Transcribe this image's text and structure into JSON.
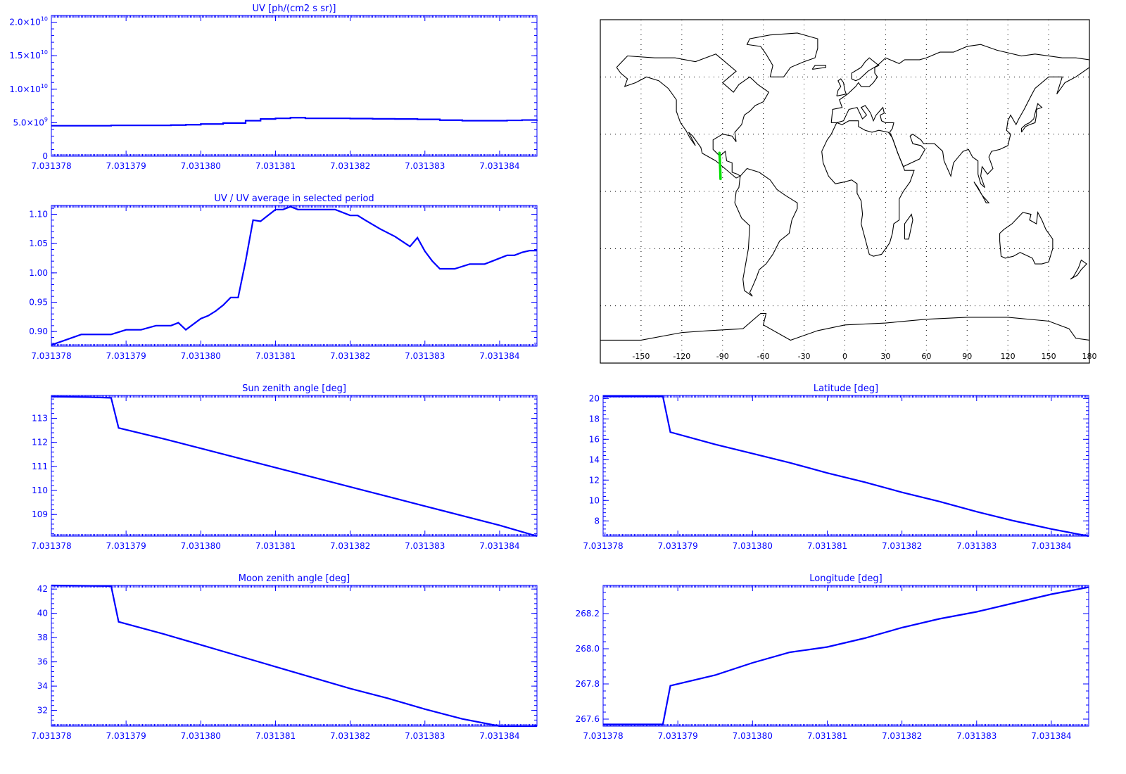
{
  "colors": {
    "axis": "#0000ff",
    "series": "#0000ff",
    "map_line": "#000000",
    "track": "#00e000",
    "grid": "#000000",
    "background": "#ffffff"
  },
  "x_tick_labels": [
    "7.031378",
    "7.031379",
    "7.031380",
    "7.031381",
    "7.031382",
    "7.031383",
    "7.031384"
  ],
  "chart_data": [
    {
      "type": "line",
      "title": "UV [ph/(cm2 s sr)]",
      "xlim": [
        7.031378,
        7.0313845
      ],
      "ylim": [
        0,
        21000000000.0
      ],
      "yticks": [
        {
          "v": 0,
          "mantissa": "0",
          "exp": ""
        },
        {
          "v": 5000000000.0,
          "mantissa": "5.0×10",
          "exp": "9"
        },
        {
          "v": 10000000000.0,
          "mantissa": "1.0×10",
          "exp": "10"
        },
        {
          "v": 15000000000.0,
          "mantissa": "1.5×10",
          "exp": "10"
        },
        {
          "v": 20000000000.0,
          "mantissa": "2.0×10",
          "exp": "10"
        }
      ],
      "step": true,
      "series": [
        {
          "x": [
            7.031378,
            7.0313788,
            7.0313791,
            7.0313796,
            7.0313798,
            7.03138,
            7.0313803,
            7.0313806,
            7.0313808,
            7.031381,
            7.0313812,
            7.0313814,
            7.0313817,
            7.031382,
            7.0313823,
            7.0313826,
            7.0313829,
            7.0313832,
            7.0313835,
            7.0313838,
            7.0313841,
            7.0313843,
            7.0313845
          ],
          "y": [
            4550000000.0,
            4600000000.0,
            4600000000.0,
            4650000000.0,
            4700000000.0,
            4800000000.0,
            4950000000.0,
            5300000000.0,
            5550000000.0,
            5650000000.0,
            5750000000.0,
            5650000000.0,
            5650000000.0,
            5620000000.0,
            5580000000.0,
            5550000000.0,
            5500000000.0,
            5380000000.0,
            5300000000.0,
            5300000000.0,
            5350000000.0,
            5400000000.0,
            5450000000.0
          ]
        }
      ]
    },
    {
      "type": "line",
      "title": "UV / UV average in selected period",
      "xlim": [
        7.031378,
        7.0313845
      ],
      "ylim": [
        0.875,
        1.115
      ],
      "yticks": [
        {
          "v": 0.9,
          "label": "0.90"
        },
        {
          "v": 0.95,
          "label": "0.95"
        },
        {
          "v": 1.0,
          "label": "1.00"
        },
        {
          "v": 1.05,
          "label": "1.05"
        },
        {
          "v": 1.1,
          "label": "1.10"
        }
      ],
      "series": [
        {
          "x": [
            7.031378,
            7.0313784,
            7.0313788,
            7.031379,
            7.0313792,
            7.0313794,
            7.0313796,
            7.0313797,
            7.0313798,
            7.03138,
            7.0313801,
            7.0313802,
            7.0313803,
            7.0313804,
            7.0313805,
            7.0313806,
            7.0313807,
            7.0313808,
            7.0313809,
            7.031381,
            7.0313811,
            7.0313812,
            7.0313813,
            7.0313814,
            7.0313816,
            7.0313818,
            7.031382,
            7.0313821,
            7.0313822,
            7.0313824,
            7.0313826,
            7.0313828,
            7.0313829,
            7.031383,
            7.0313831,
            7.0313832,
            7.0313833,
            7.0313834,
            7.0313836,
            7.0313838,
            7.0313839,
            7.0313841,
            7.0313842,
            7.0313843,
            7.0313844,
            7.0313845
          ],
          "y": [
            0.877,
            0.895,
            0.895,
            0.903,
            0.903,
            0.91,
            0.91,
            0.915,
            0.903,
            0.922,
            0.927,
            0.935,
            0.945,
            0.958,
            0.958,
            1.02,
            1.09,
            1.088,
            1.098,
            1.108,
            1.108,
            1.113,
            1.108,
            1.108,
            1.108,
            1.108,
            1.098,
            1.098,
            1.09,
            1.075,
            1.062,
            1.045,
            1.06,
            1.037,
            1.02,
            1.007,
            1.007,
            1.007,
            1.015,
            1.015,
            1.02,
            1.03,
            1.03,
            1.035,
            1.038,
            1.038
          ]
        }
      ]
    },
    {
      "type": "line",
      "title": "Sun zenith angle [deg]",
      "xlim": [
        7.031378,
        7.0313845
      ],
      "ylim": [
        108.1,
        113.95
      ],
      "yticks": [
        {
          "v": 109,
          "label": "109"
        },
        {
          "v": 110,
          "label": "110"
        },
        {
          "v": 111,
          "label": "111"
        },
        {
          "v": 112,
          "label": "112"
        },
        {
          "v": 113,
          "label": "113"
        }
      ],
      "series": [
        {
          "x": [
            7.031378,
            7.0313785,
            7.0313788,
            7.0313789,
            7.0313795,
            7.03138,
            7.0313805,
            7.031381,
            7.0313815,
            7.031382,
            7.0313825,
            7.031383,
            7.0313835,
            7.031384,
            7.0313845
          ],
          "y": [
            113.9,
            113.88,
            113.85,
            112.6,
            112.15,
            111.75,
            111.35,
            110.95,
            110.55,
            110.15,
            109.75,
            109.35,
            108.95,
            108.55,
            108.1
          ]
        }
      ]
    },
    {
      "type": "line",
      "title": "Latitude [deg]",
      "xlim": [
        7.031378,
        7.0313845
      ],
      "ylim": [
        6.5,
        20.3
      ],
      "yticks": [
        {
          "v": 8,
          "label": "8"
        },
        {
          "v": 10,
          "label": "10"
        },
        {
          "v": 12,
          "label": "12"
        },
        {
          "v": 14,
          "label": "14"
        },
        {
          "v": 16,
          "label": "16"
        },
        {
          "v": 18,
          "label": "18"
        },
        {
          "v": 20,
          "label": "20"
        }
      ],
      "series": [
        {
          "x": [
            7.031378,
            7.0313788,
            7.0313789,
            7.0313795,
            7.03138,
            7.0313805,
            7.031381,
            7.0313815,
            7.031382,
            7.0313825,
            7.031383,
            7.0313835,
            7.031384,
            7.0313845
          ],
          "y": [
            20.2,
            20.2,
            16.7,
            15.5,
            14.6,
            13.7,
            12.7,
            11.8,
            10.8,
            9.9,
            8.9,
            8.0,
            7.2,
            6.5
          ]
        }
      ]
    },
    {
      "type": "line",
      "title": "Moon zenith angle [deg]",
      "xlim": [
        7.031378,
        7.0313845
      ],
      "ylim": [
        30.7,
        42.3
      ],
      "yticks": [
        {
          "v": 32,
          "label": "32"
        },
        {
          "v": 34,
          "label": "34"
        },
        {
          "v": 36,
          "label": "36"
        },
        {
          "v": 38,
          "label": "38"
        },
        {
          "v": 40,
          "label": "40"
        },
        {
          "v": 42,
          "label": "42"
        }
      ],
      "series": [
        {
          "x": [
            7.031378,
            7.0313788,
            7.0313789,
            7.0313795,
            7.03138,
            7.0313805,
            7.031381,
            7.0313815,
            7.031382,
            7.0313825,
            7.031383,
            7.0313835,
            7.031384,
            7.0313845
          ],
          "y": [
            42.3,
            42.25,
            39.3,
            38.3,
            37.4,
            36.5,
            35.6,
            34.7,
            33.8,
            33.0,
            32.1,
            31.3,
            30.7,
            30.7
          ]
        }
      ]
    },
    {
      "type": "line",
      "title": "Longitude [deg]",
      "xlim": [
        7.031378,
        7.0313845
      ],
      "ylim": [
        267.56,
        268.36
      ],
      "yticks": [
        {
          "v": 267.6,
          "label": "267.6"
        },
        {
          "v": 267.8,
          "label": "267.8"
        },
        {
          "v": 268.0,
          "label": "268.0"
        },
        {
          "v": 268.2,
          "label": "268.2"
        }
      ],
      "series": [
        {
          "x": [
            7.031378,
            7.0313788,
            7.0313789,
            7.0313795,
            7.03138,
            7.0313805,
            7.031381,
            7.0313815,
            7.031382,
            7.0313825,
            7.031383,
            7.0313835,
            7.031384,
            7.0313845
          ],
          "y": [
            267.57,
            267.57,
            267.79,
            267.85,
            267.92,
            267.98,
            268.01,
            268.06,
            268.12,
            268.17,
            268.21,
            268.26,
            268.31,
            268.35
          ]
        }
      ]
    }
  ],
  "map": {
    "type": "map",
    "projection": "equirectangular",
    "lon_range": [
      -180,
      180
    ],
    "lat_range": [
      -90,
      90
    ],
    "x_tick_labels": [
      "-150",
      "-120",
      "-90",
      "-60",
      "-30",
      "0",
      "30",
      "60",
      "90",
      "120",
      "150",
      "180"
    ],
    "grid": true,
    "track": {
      "lon": [
        -92.3,
        -92.0,
        -91.7,
        -91.5
      ],
      "lat": [
        20.2,
        16.7,
        11.0,
        6.5
      ]
    }
  }
}
